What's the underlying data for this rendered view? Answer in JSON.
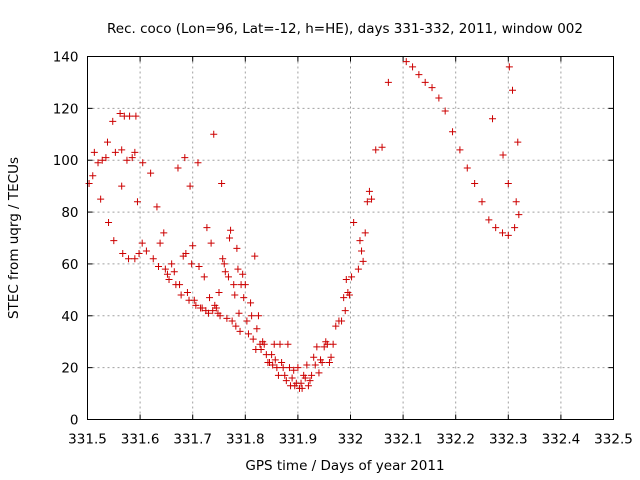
{
  "chart_data": {
    "type": "scatter",
    "title": "Rec. coco (Lon=96, Lat=-12, h=HE), days 331-332, 2011, window 002",
    "xlabel": "GPS time / Days of year 2011",
    "ylabel": "STEC from uqrg / TECUs",
    "xlim": [
      331.5,
      332.5
    ],
    "ylim": [
      0,
      140
    ],
    "xticks": [
      331.5,
      331.6,
      331.7,
      331.8,
      331.9,
      332.0,
      332.1,
      332.2,
      332.3,
      332.4,
      332.5
    ],
    "xtick_labels": [
      "331.5",
      "331.6",
      "331.7",
      "331.8",
      "331.9",
      "332",
      "332.1",
      "332.2",
      "332.3",
      "332.4",
      "332.5"
    ],
    "yticks": [
      0,
      20,
      40,
      60,
      80,
      100,
      120,
      140
    ],
    "ytick_labels": [
      "0",
      "20",
      "40",
      "60",
      "80",
      "100",
      "120",
      "140"
    ],
    "grid": true,
    "marker": "+",
    "color": "#cc0000",
    "series": [
      {
        "points": [
          [
            331.503,
            91
          ],
          [
            331.51,
            94
          ],
          [
            331.513,
            103
          ],
          [
            331.52,
            99
          ],
          [
            331.525,
            85
          ],
          [
            331.528,
            100
          ],
          [
            331.535,
            101
          ],
          [
            331.538,
            107
          ],
          [
            331.54,
            76
          ],
          [
            331.548,
            115
          ],
          [
            331.55,
            69
          ],
          [
            331.553,
            103
          ],
          [
            331.562,
            118
          ],
          [
            331.565,
            104
          ],
          [
            331.565,
            90
          ],
          [
            331.57,
            117
          ],
          [
            331.575,
            100
          ],
          [
            331.58,
            117
          ],
          [
            331.585,
            101
          ],
          [
            331.59,
            103
          ],
          [
            331.592,
            117
          ],
          [
            331.595,
            84
          ],
          [
            331.605,
            99
          ],
          [
            331.567,
            64
          ],
          [
            331.578,
            62
          ],
          [
            331.59,
            62
          ],
          [
            331.598,
            64
          ],
          [
            331.604,
            68
          ],
          [
            331.612,
            65
          ],
          [
            331.62,
            95
          ],
          [
            331.625,
            62
          ],
          [
            331.632,
            82
          ],
          [
            331.635,
            59
          ],
          [
            331.638,
            68
          ],
          [
            331.645,
            72
          ],
          [
            331.648,
            58
          ],
          [
            331.652,
            56
          ],
          [
            331.655,
            54
          ],
          [
            331.66,
            60
          ],
          [
            331.665,
            57
          ],
          [
            331.668,
            52
          ],
          [
            331.672,
            97
          ],
          [
            331.675,
            52
          ],
          [
            331.678,
            48
          ],
          [
            331.682,
            63
          ],
          [
            331.685,
            101
          ],
          [
            331.687,
            64
          ],
          [
            331.69,
            49
          ],
          [
            331.693,
            46
          ],
          [
            331.695,
            90
          ],
          [
            331.698,
            60
          ],
          [
            331.7,
            67
          ],
          [
            331.703,
            46
          ],
          [
            331.706,
            44
          ],
          [
            331.71,
            99
          ],
          [
            331.712,
            59
          ],
          [
            331.715,
            43
          ],
          [
            331.718,
            43
          ],
          [
            331.722,
            55
          ],
          [
            331.725,
            42
          ],
          [
            331.727,
            74
          ],
          [
            331.73,
            41
          ],
          [
            331.732,
            47
          ],
          [
            331.735,
            68
          ],
          [
            331.738,
            42
          ],
          [
            331.74,
            110
          ],
          [
            331.742,
            44
          ],
          [
            331.745,
            43
          ],
          [
            331.748,
            41
          ],
          [
            331.75,
            49
          ],
          [
            331.752,
            40
          ],
          [
            331.755,
            91
          ],
          [
            331.757,
            62
          ],
          [
            331.76,
            60
          ],
          [
            331.762,
            57
          ],
          [
            331.765,
            39
          ],
          [
            331.768,
            55
          ],
          [
            331.77,
            70
          ],
          [
            331.772,
            73
          ],
          [
            331.775,
            38
          ],
          [
            331.778,
            52
          ],
          [
            331.78,
            48
          ],
          [
            331.782,
            36
          ],
          [
            331.784,
            66
          ],
          [
            331.786,
            58
          ],
          [
            331.788,
            41
          ],
          [
            331.79,
            34
          ],
          [
            331.792,
            52
          ],
          [
            331.795,
            56
          ],
          [
            331.797,
            47
          ],
          [
            331.8,
            52
          ],
          [
            331.803,
            38
          ],
          [
            331.806,
            33
          ],
          [
            331.81,
            45
          ],
          [
            331.812,
            40
          ],
          [
            331.815,
            31
          ],
          [
            331.818,
            63
          ],
          [
            331.82,
            27
          ],
          [
            331.822,
            35
          ],
          [
            331.825,
            40
          ],
          [
            331.828,
            29
          ],
          [
            331.83,
            27
          ],
          [
            331.833,
            30
          ],
          [
            331.836,
            29
          ],
          [
            331.84,
            25
          ],
          [
            331.843,
            22
          ],
          [
            331.846,
            22
          ],
          [
            331.85,
            25
          ],
          [
            331.852,
            21
          ],
          [
            331.855,
            29
          ],
          [
            331.857,
            23
          ],
          [
            331.86,
            20
          ],
          [
            331.863,
            17
          ],
          [
            331.866,
            29
          ],
          [
            331.869,
            22
          ],
          [
            331.872,
            20
          ],
          [
            331.875,
            17
          ],
          [
            331.878,
            15
          ],
          [
            331.881,
            29
          ],
          [
            331.884,
            20
          ],
          [
            331.886,
            13
          ],
          [
            331.889,
            16
          ],
          [
            331.892,
            19
          ],
          [
            331.894,
            13
          ],
          [
            331.897,
            14
          ],
          [
            331.9,
            20
          ],
          [
            331.903,
            12
          ],
          [
            331.906,
            14
          ],
          [
            331.908,
            12
          ],
          [
            331.911,
            17
          ],
          [
            331.914,
            16
          ],
          [
            331.917,
            21
          ],
          [
            331.92,
            13
          ],
          [
            331.923,
            15
          ],
          [
            331.926,
            17
          ],
          [
            331.93,
            24
          ],
          [
            331.933,
            21
          ],
          [
            331.936,
            28
          ],
          [
            331.94,
            18
          ],
          [
            331.943,
            23
          ],
          [
            331.946,
            22
          ],
          [
            331.95,
            28
          ],
          [
            331.953,
            30
          ],
          [
            331.956,
            29
          ],
          [
            331.96,
            22
          ],
          [
            331.963,
            24
          ],
          [
            331.967,
            29
          ],
          [
            331.972,
            36
          ],
          [
            331.978,
            38
          ],
          [
            331.983,
            38
          ],
          [
            331.987,
            47
          ],
          [
            331.99,
            42
          ],
          [
            331.992,
            54
          ],
          [
            331.995,
            49
          ],
          [
            331.998,
            48
          ],
          [
            332.002,
            55
          ],
          [
            332.006,
            76
          ],
          [
            332.015,
            58
          ],
          [
            332.018,
            69
          ],
          [
            332.021,
            65
          ],
          [
            332.024,
            61
          ],
          [
            332.028,
            72
          ],
          [
            332.032,
            84
          ],
          [
            332.036,
            88
          ],
          [
            332.04,
            85
          ],
          [
            332.048,
            104
          ],
          [
            332.06,
            105
          ],
          [
            332.072,
            130
          ],
          [
            332.106,
            138
          ],
          [
            332.118,
            136
          ],
          [
            332.13,
            133
          ],
          [
            332.142,
            130
          ],
          [
            332.155,
            128
          ],
          [
            332.168,
            124
          ],
          [
            332.18,
            119
          ],
          [
            332.194,
            111
          ],
          [
            332.208,
            104
          ],
          [
            332.222,
            97
          ],
          [
            332.236,
            91
          ],
          [
            332.25,
            84
          ],
          [
            332.263,
            77
          ],
          [
            332.276,
            74
          ],
          [
            332.289,
            72
          ],
          [
            332.3,
            71
          ],
          [
            332.312,
            74
          ],
          [
            332.27,
            116
          ],
          [
            332.29,
            102
          ],
          [
            332.3,
            91
          ],
          [
            332.308,
            127
          ],
          [
            332.318,
            107
          ],
          [
            332.315,
            84
          ],
          [
            332.32,
            79
          ],
          [
            332.302,
            136
          ]
        ]
      }
    ]
  }
}
